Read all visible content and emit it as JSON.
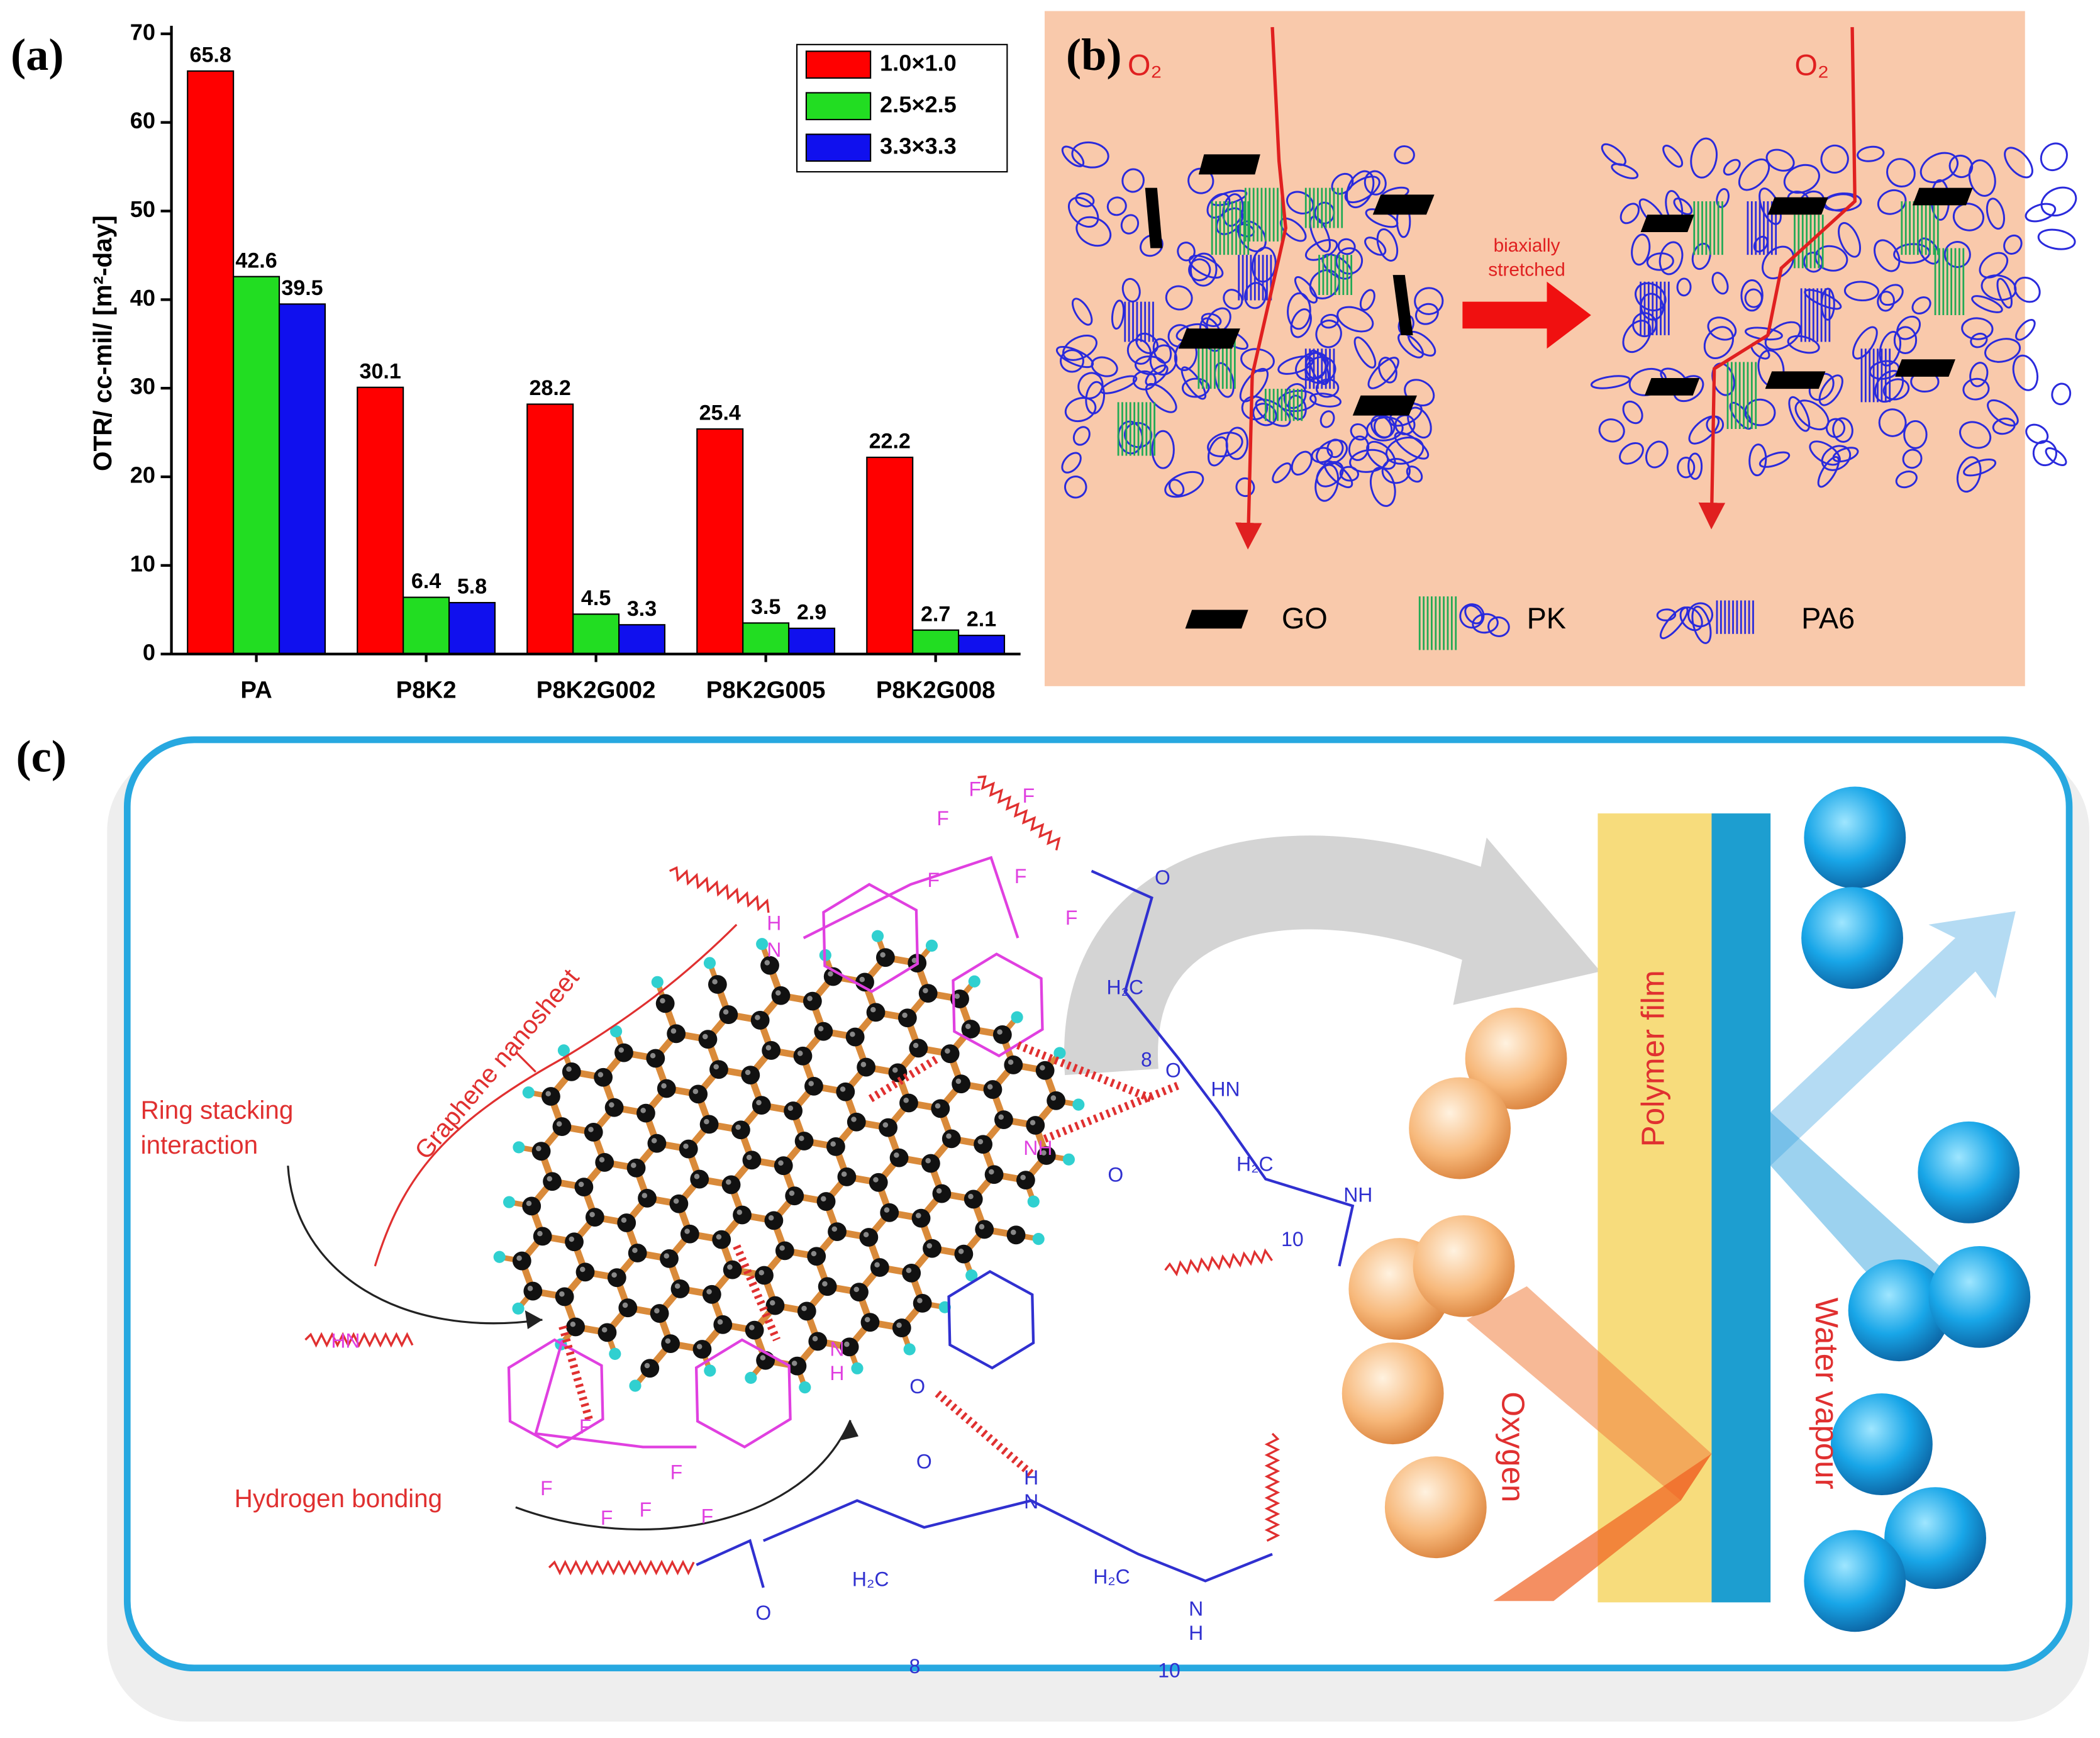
{
  "chart_data": {
    "type": "bar",
    "panel_label": "(a)",
    "y_label": "OTR/ cc-mil/ [m²-day]",
    "categories": [
      "PA",
      "P8K2",
      "P8K2G002",
      "P8K2G005",
      "P8K2G008"
    ],
    "series": [
      {
        "name": "1.0×1.0",
        "color": "#ff0000",
        "values": [
          65.8,
          30.1,
          28.2,
          25.4,
          22.2
        ]
      },
      {
        "name": "2.5×2.5",
        "color": "#22dd22",
        "values": [
          42.6,
          6.4,
          4.5,
          3.5,
          2.7
        ]
      },
      {
        "name": "3.3×3.3",
        "color": "#1010ee",
        "values": [
          39.5,
          5.8,
          3.3,
          2.9,
          2.1
        ]
      }
    ],
    "ylim": [
      0,
      70
    ],
    "yticks": [
      0,
      10,
      20,
      30,
      40,
      50,
      60,
      70
    ],
    "legend": "upper right"
  },
  "panel_b": {
    "label": "(b)",
    "oxygen_labels": [
      "O₂",
      "O₂"
    ],
    "arrow_label": [
      "biaxially",
      "stretched"
    ],
    "legend": [
      "GO",
      "PK",
      "PA6"
    ]
  },
  "panel_c": {
    "label": "(c)",
    "annotations": [
      "Ring stacking",
      "interaction",
      "Graphene nanosheet",
      "Hydrogen bonding"
    ],
    "film_labels": [
      "Polymer film",
      "Oxygen",
      "Water vapour"
    ],
    "chem_labels": [
      "H",
      "N",
      "F",
      "F",
      "F",
      "F",
      "F",
      "F",
      "O",
      "H₂C",
      "8",
      "O",
      "HN",
      "NH",
      "O",
      "H₂C",
      "NH",
      "10",
      "HN",
      "N",
      "H",
      "O",
      "F",
      "F",
      "F",
      "F",
      "F",
      "F",
      "O",
      "H",
      "N",
      "O",
      "H₂C",
      "8",
      "H₂C",
      "10",
      "N",
      "H"
    ]
  }
}
